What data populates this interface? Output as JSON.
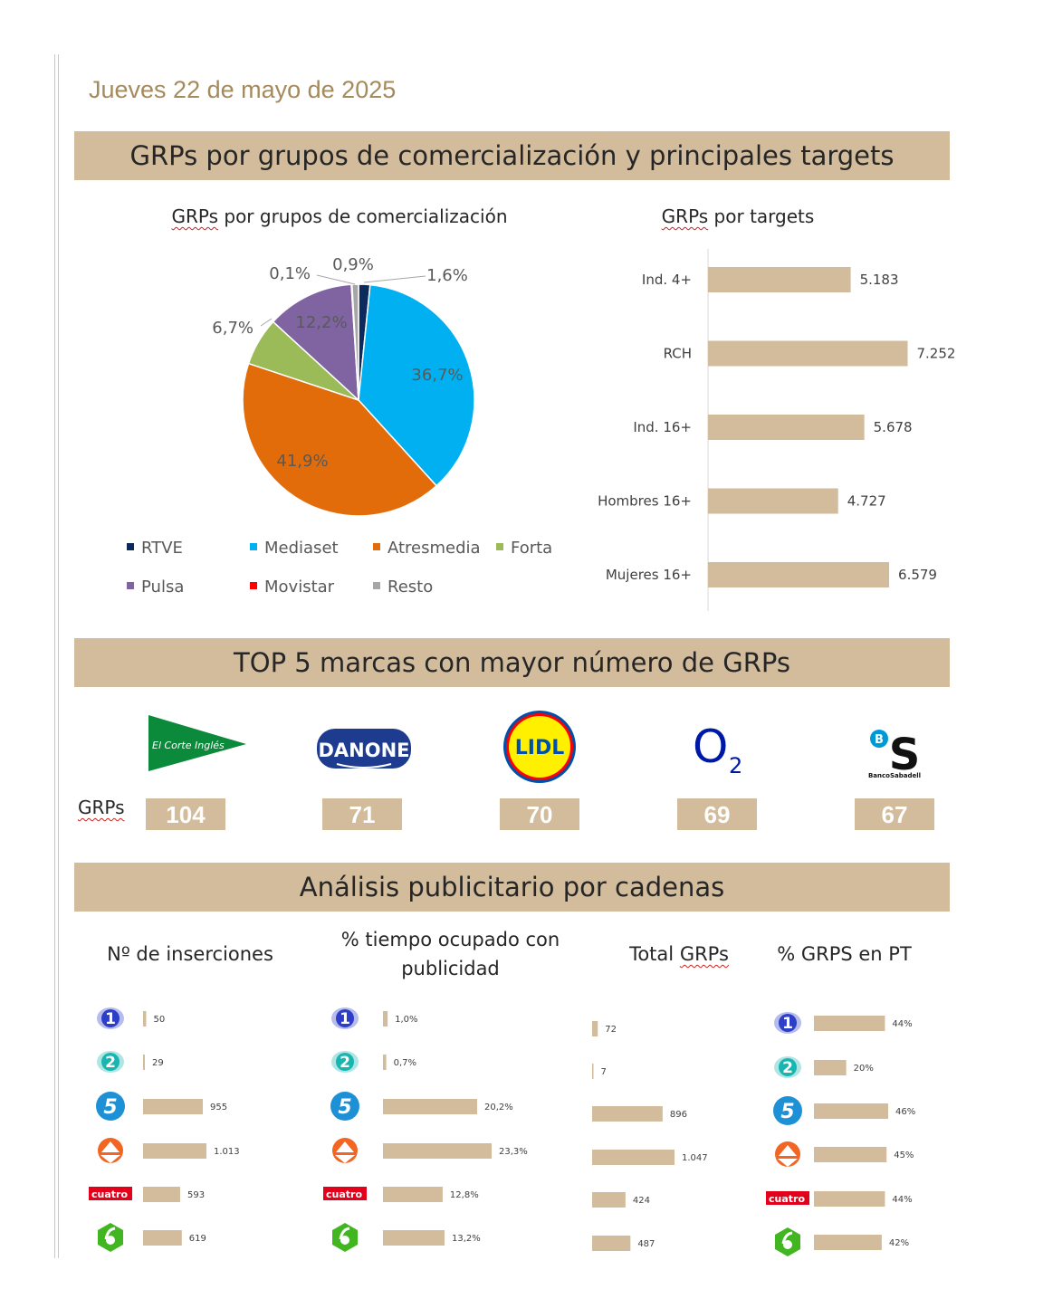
{
  "date": "Jueves 22 de mayo de 2025",
  "section1_title": "GRPs por grupos de comercialización y principales targets",
  "section2_title": "TOP 5 marcas con mayor número de GRPs",
  "section3_title": "Análisis publicitario por cadenas",
  "pie_title_prefix": "GRPs",
  "pie_title_rest": " por grupos de comercialización",
  "targets_title_prefix": "GRPs",
  "targets_title_rest": " por targets",
  "grps_label": "GRPs",
  "colors": {
    "band": "#d2bc9c",
    "bar": "#d2bc9c",
    "date": "#a58a5b"
  },
  "chart_data": [
    {
      "type": "pie",
      "title": "GRPs por grupos de comercialización",
      "slices": [
        {
          "name": "RTVE",
          "value": 1.6,
          "label": "1,6%",
          "color": "#0d2a5c"
        },
        {
          "name": "Mediaset",
          "value": 36.7,
          "label": "36,7%",
          "color": "#00b0f0"
        },
        {
          "name": "Atresmedia",
          "value": 41.9,
          "label": "41,9%",
          "color": "#e36c0a"
        },
        {
          "name": "Forta",
          "value": 6.7,
          "label": "6,7%",
          "color": "#9bbb59"
        },
        {
          "name": "Pulsa",
          "value": 12.2,
          "label": "12,2%",
          "color": "#8064a2"
        },
        {
          "name": "Movistar",
          "value": 0.1,
          "label": "0,1%",
          "color": "#ff0000"
        },
        {
          "name": "Resto",
          "value": 0.9,
          "label": "0,9%",
          "color": "#a6a6a6"
        }
      ],
      "legend": [
        "RTVE",
        "Mediaset",
        "Atresmedia",
        "Forta",
        "Pulsa",
        "Movistar",
        "Resto"
      ]
    },
    {
      "type": "bar",
      "orientation": "horizontal",
      "title": "GRPs por targets",
      "categories": [
        "Ind. 4+",
        "RCH",
        "Ind. 16+",
        "Hombres 16+",
        "Mujeres 16+"
      ],
      "values": [
        5183,
        7252,
        5678,
        4727,
        6579
      ],
      "labels": [
        "5.183",
        "7.252",
        "5.678",
        "4.727",
        "6.579"
      ],
      "xlim": [
        0,
        7400
      ]
    },
    {
      "type": "bar",
      "title": "TOP 5 marcas con mayor número de GRPs",
      "categories": [
        "El Corte Inglés",
        "Danone",
        "Lidl",
        "O2",
        "Banco Sabadell"
      ],
      "values": [
        104,
        71,
        70,
        69,
        67
      ]
    },
    {
      "type": "bar",
      "orientation": "horizontal",
      "title": "Nº de inserciones",
      "categories": [
        "La 1",
        "La 2",
        "Telecinco",
        "Antena 3",
        "Cuatro",
        "laSexta"
      ],
      "values": [
        50,
        29,
        955,
        1013,
        593,
        619
      ],
      "labels": [
        "50",
        "29",
        "955",
        "1.013",
        "593",
        "619"
      ],
      "xlim": [
        0,
        1013
      ]
    },
    {
      "type": "bar",
      "orientation": "horizontal",
      "title": "% tiempo ocupado con publicidad",
      "categories": [
        "La 1",
        "La 2",
        "Telecinco",
        "Antena 3",
        "Cuatro",
        "laSexta"
      ],
      "values": [
        1.0,
        0.7,
        20.2,
        23.3,
        12.8,
        13.2
      ],
      "labels": [
        "1,0%",
        "0,7%",
        "20,2%",
        "23,3%",
        "12,8%",
        "13,2%"
      ],
      "xlim": [
        0,
        23.3
      ]
    },
    {
      "type": "bar",
      "orientation": "horizontal",
      "title": "Total GRPs",
      "categories": [
        "La 1",
        "La 2",
        "Telecinco",
        "Antena 3",
        "Cuatro",
        "laSexta"
      ],
      "values": [
        72,
        7,
        896,
        1047,
        424,
        487
      ],
      "labels": [
        "72",
        "7",
        "896",
        "1.047",
        "424",
        "487"
      ],
      "xlim": [
        0,
        1047
      ]
    },
    {
      "type": "bar",
      "orientation": "horizontal",
      "title": "% GRPS en PT",
      "categories": [
        "La 1",
        "La 2",
        "Telecinco",
        "Antena 3",
        "Cuatro",
        "laSexta"
      ],
      "values": [
        44,
        20,
        46,
        45,
        44,
        42
      ],
      "labels": [
        "44%",
        "20%",
        "46%",
        "45%",
        "44%",
        "42%"
      ],
      "xlim": [
        0,
        46
      ]
    }
  ],
  "brands": [
    {
      "name": "El Corte Inglés",
      "logo_text": "El Corte Inglés",
      "grps": "104"
    },
    {
      "name": "Danone",
      "logo_text": "DANONE",
      "grps": "71"
    },
    {
      "name": "Lidl",
      "logo_text": "LIDL",
      "grps": "70"
    },
    {
      "name": "O2",
      "logo_text": "O",
      "logo_sub": "2",
      "grps": "69"
    },
    {
      "name": "Banco Sabadell",
      "logo_text": "S",
      "logo_badge": "B",
      "logo_caption": "BancoSabadell",
      "grps": "67"
    }
  ],
  "columns": {
    "inserciones": "Nº de inserciones",
    "tiempo_line1": "% tiempo ocupado con",
    "tiempo_line2": "publicidad",
    "total_prefix": "Total ",
    "total_grps": "GRPs",
    "pt": "% GRPS en PT"
  },
  "channel_logos": {
    "la1": "1",
    "la2": "2",
    "t5": "5",
    "cuatro": "cuatro"
  }
}
